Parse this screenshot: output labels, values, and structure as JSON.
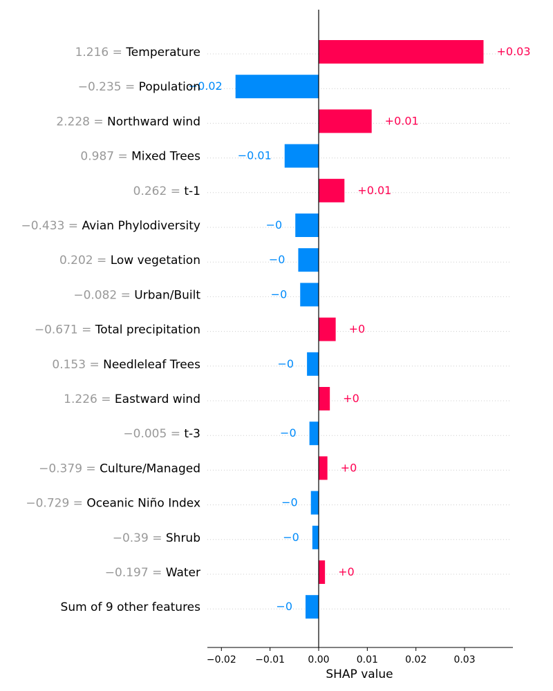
{
  "chart_data": {
    "type": "bar",
    "subtype": "shap-waterfall-bar",
    "title": "",
    "xlabel": "SHAP value",
    "ylabel": "",
    "xlim": [
      -0.0225,
      0.0395
    ],
    "xticks": [
      -0.02,
      -0.01,
      0.0,
      0.01,
      0.02,
      0.03
    ],
    "xtick_labels": [
      "−0.02",
      "−0.01",
      "0.00",
      "0.01",
      "0.02",
      "0.03"
    ],
    "colors": {
      "positive": "#ff0051",
      "negative": "#008bfb",
      "value_text": "#999999",
      "axis": "#000000",
      "grid": "#cccccc"
    },
    "features": [
      {
        "value": "1.216",
        "name": "Temperature",
        "shap": 0.0339,
        "label": "+0.03"
      },
      {
        "value": "−0.235",
        "name": "Population",
        "shap": -0.0171,
        "label": "−0.02"
      },
      {
        "value": "2.228",
        "name": "Northward wind",
        "shap": 0.0109,
        "label": "+0.01"
      },
      {
        "value": "0.987",
        "name": "Mixed Trees",
        "shap": -0.007,
        "label": "−0.01"
      },
      {
        "value": "0.262",
        "name": "t-1",
        "shap": 0.0053,
        "label": "+0.01"
      },
      {
        "value": "−0.433",
        "name": "Avian Phylodiversity",
        "shap": -0.0048,
        "label": "−0"
      },
      {
        "value": "0.202",
        "name": "Low vegetation",
        "shap": -0.0042,
        "label": "−0"
      },
      {
        "value": "−0.082",
        "name": "Urban/Built",
        "shap": -0.0038,
        "label": "−0"
      },
      {
        "value": "−0.671",
        "name": "Total precipitation",
        "shap": 0.0035,
        "label": "+0"
      },
      {
        "value": "0.153",
        "name": "Needleleaf Trees",
        "shap": -0.0024,
        "label": "−0"
      },
      {
        "value": "1.226",
        "name": "Eastward wind",
        "shap": 0.0023,
        "label": "+0"
      },
      {
        "value": "−0.005",
        "name": "t-3",
        "shap": -0.0019,
        "label": "−0"
      },
      {
        "value": "−0.379",
        "name": "Culture/Managed",
        "shap": 0.0018,
        "label": "+0"
      },
      {
        "value": "−0.729",
        "name": "Oceanic Niño Index",
        "shap": -0.0016,
        "label": "−0"
      },
      {
        "value": "−0.39",
        "name": "Shrub",
        "shap": -0.0013,
        "label": "−0"
      },
      {
        "value": "−0.197",
        "name": "Water",
        "shap": 0.0013,
        "label": "+0"
      },
      {
        "value": "",
        "name": "Sum of 9 other features",
        "shap": -0.0027,
        "label": "−0"
      }
    ]
  }
}
